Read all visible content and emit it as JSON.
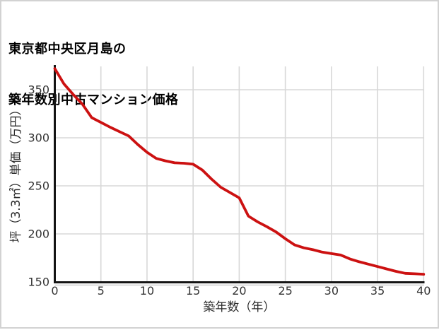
{
  "title": {
    "line1": "東京都中央区月島の",
    "line2": "築年数別中古マンション価格"
  },
  "chart_data": {
    "type": "line",
    "title": "東京都中央区月島の築年数別中古マンション価格",
    "xlabel": "築年数（年）",
    "ylabel": "坪（3.3㎡）単価（万円）",
    "x": [
      0,
      1,
      2,
      3,
      4,
      5,
      6,
      7,
      8,
      9,
      10,
      11,
      12,
      13,
      14,
      15,
      16,
      17,
      18,
      19,
      20,
      21,
      22,
      23,
      24,
      25,
      26,
      27,
      28,
      29,
      30,
      31,
      32,
      33,
      34,
      35,
      36,
      37,
      38,
      39,
      40
    ],
    "y": [
      372,
      356,
      345,
      335,
      321,
      316,
      311,
      306.5,
      302,
      293,
      285,
      278.5,
      276,
      274,
      273.5,
      272.5,
      266.5,
      257,
      248.5,
      243,
      237.5,
      218.5,
      212.5,
      207.5,
      202,
      195,
      188.5,
      185.5,
      183.5,
      181,
      179.5,
      178,
      174,
      171,
      168.5,
      166,
      163.5,
      161,
      159,
      158.5,
      158
    ],
    "xticks": [
      0,
      5,
      10,
      15,
      20,
      25,
      30,
      35,
      40
    ],
    "yticks": [
      150,
      200,
      250,
      300,
      350
    ],
    "xlim": [
      0,
      40
    ],
    "ylim": [
      150,
      373
    ],
    "grid": true,
    "legend": false
  },
  "colors": {
    "line": "#cc1111",
    "grid": "#d8d8d8",
    "axis": "#141414",
    "axis_shadow": "#dcdcdc",
    "tick_text": "#333333",
    "label_text": "#2b2b2b",
    "border": "#d2d2d2",
    "background": "#ffffff"
  }
}
